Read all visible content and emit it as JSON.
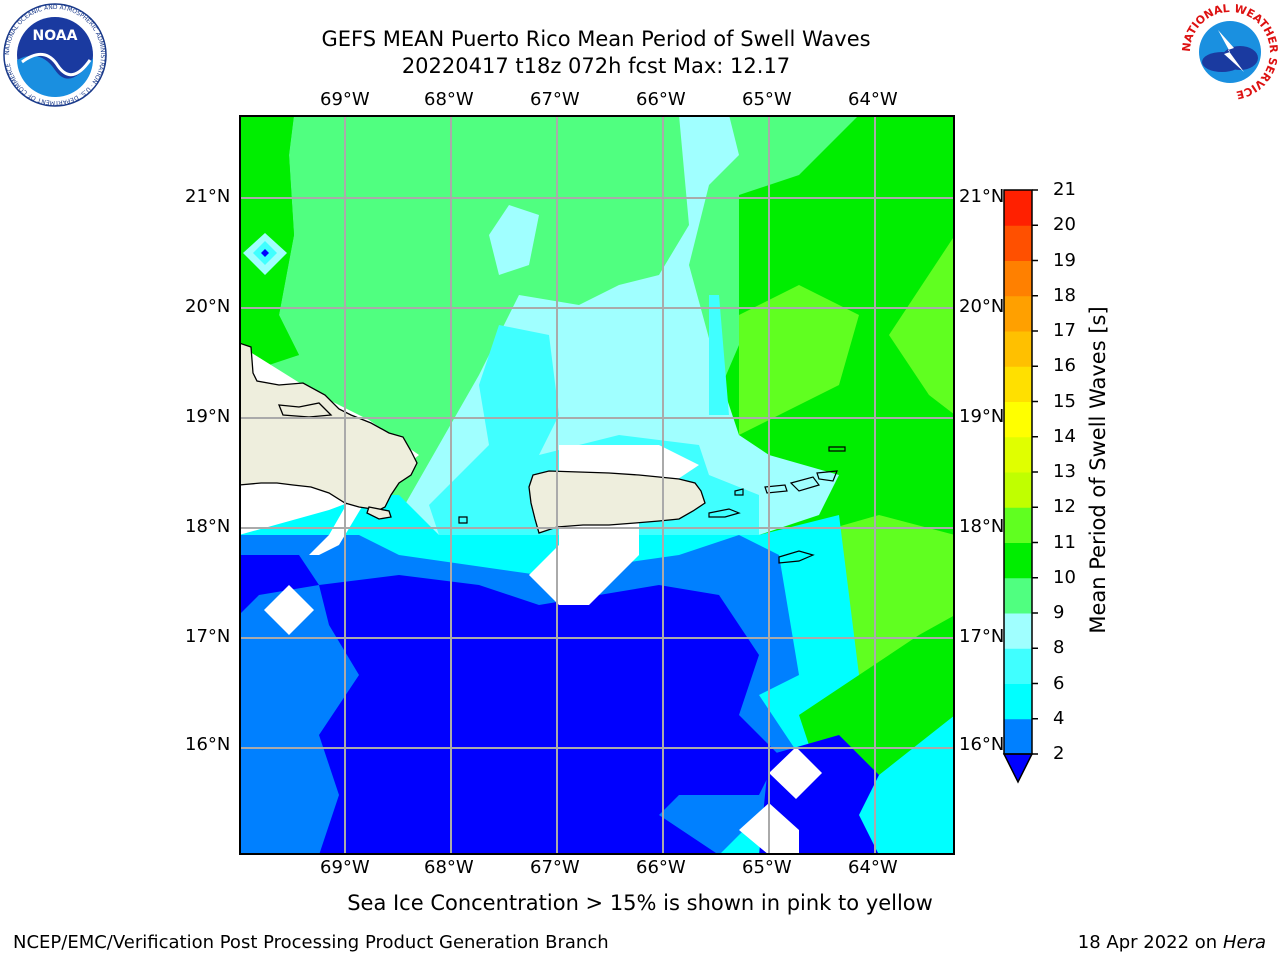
{
  "title": {
    "line1": "GEFS MEAN Puerto Rico Mean Period of Swell Waves",
    "line2": "20220417 t18z 072h fcst   Max: 12.17"
  },
  "map": {
    "lon_labels": [
      "69°W",
      "68°W",
      "67°W",
      "66°W",
      "65°W",
      "64°W"
    ],
    "lat_labels": [
      "21°N",
      "20°N",
      "19°N",
      "18°N",
      "17°N",
      "16°N"
    ],
    "land_color": "#eeeedd",
    "deep_blue": "#0000ff",
    "grid_color": "#aaaaaa"
  },
  "colorbar": {
    "label": "Mean Period of Swell Waves [s]",
    "ticks": [
      "2",
      "4",
      "6",
      "8",
      "9",
      "10",
      "11",
      "12",
      "13",
      "14",
      "15",
      "16",
      "17",
      "18",
      "19",
      "20",
      "21"
    ],
    "colors": [
      "#0080ff",
      "#00ffff",
      "#40ffff",
      "#a0ffff",
      "#50ff80",
      "#00ee00",
      "#60ff20",
      "#c0ff00",
      "#e0ff00",
      "#ffff00",
      "#ffe000",
      "#ffc000",
      "#ffa000",
      "#ff8000",
      "#ff5000",
      "#ff2000"
    ],
    "under_color": "#0000ff"
  },
  "footer": {
    "sea_ice_note": "Sea Ice Concentration > 15% is shown in pink to yellow",
    "credit": "NCEP/EMC/Verification Post Processing Product Generation Branch",
    "date": "18 Apr 2022 on ",
    "host": "Hera"
  },
  "logos": {
    "noaa_text": "NOAA",
    "noaa_ring_text": "NATIONAL OCEANIC AND ATMOSPHERIC ADMINISTRATION · U.S. DEPARTMENT OF COMMERCE",
    "nws_ring_text": "NATIONAL WEATHER SERVICE"
  }
}
